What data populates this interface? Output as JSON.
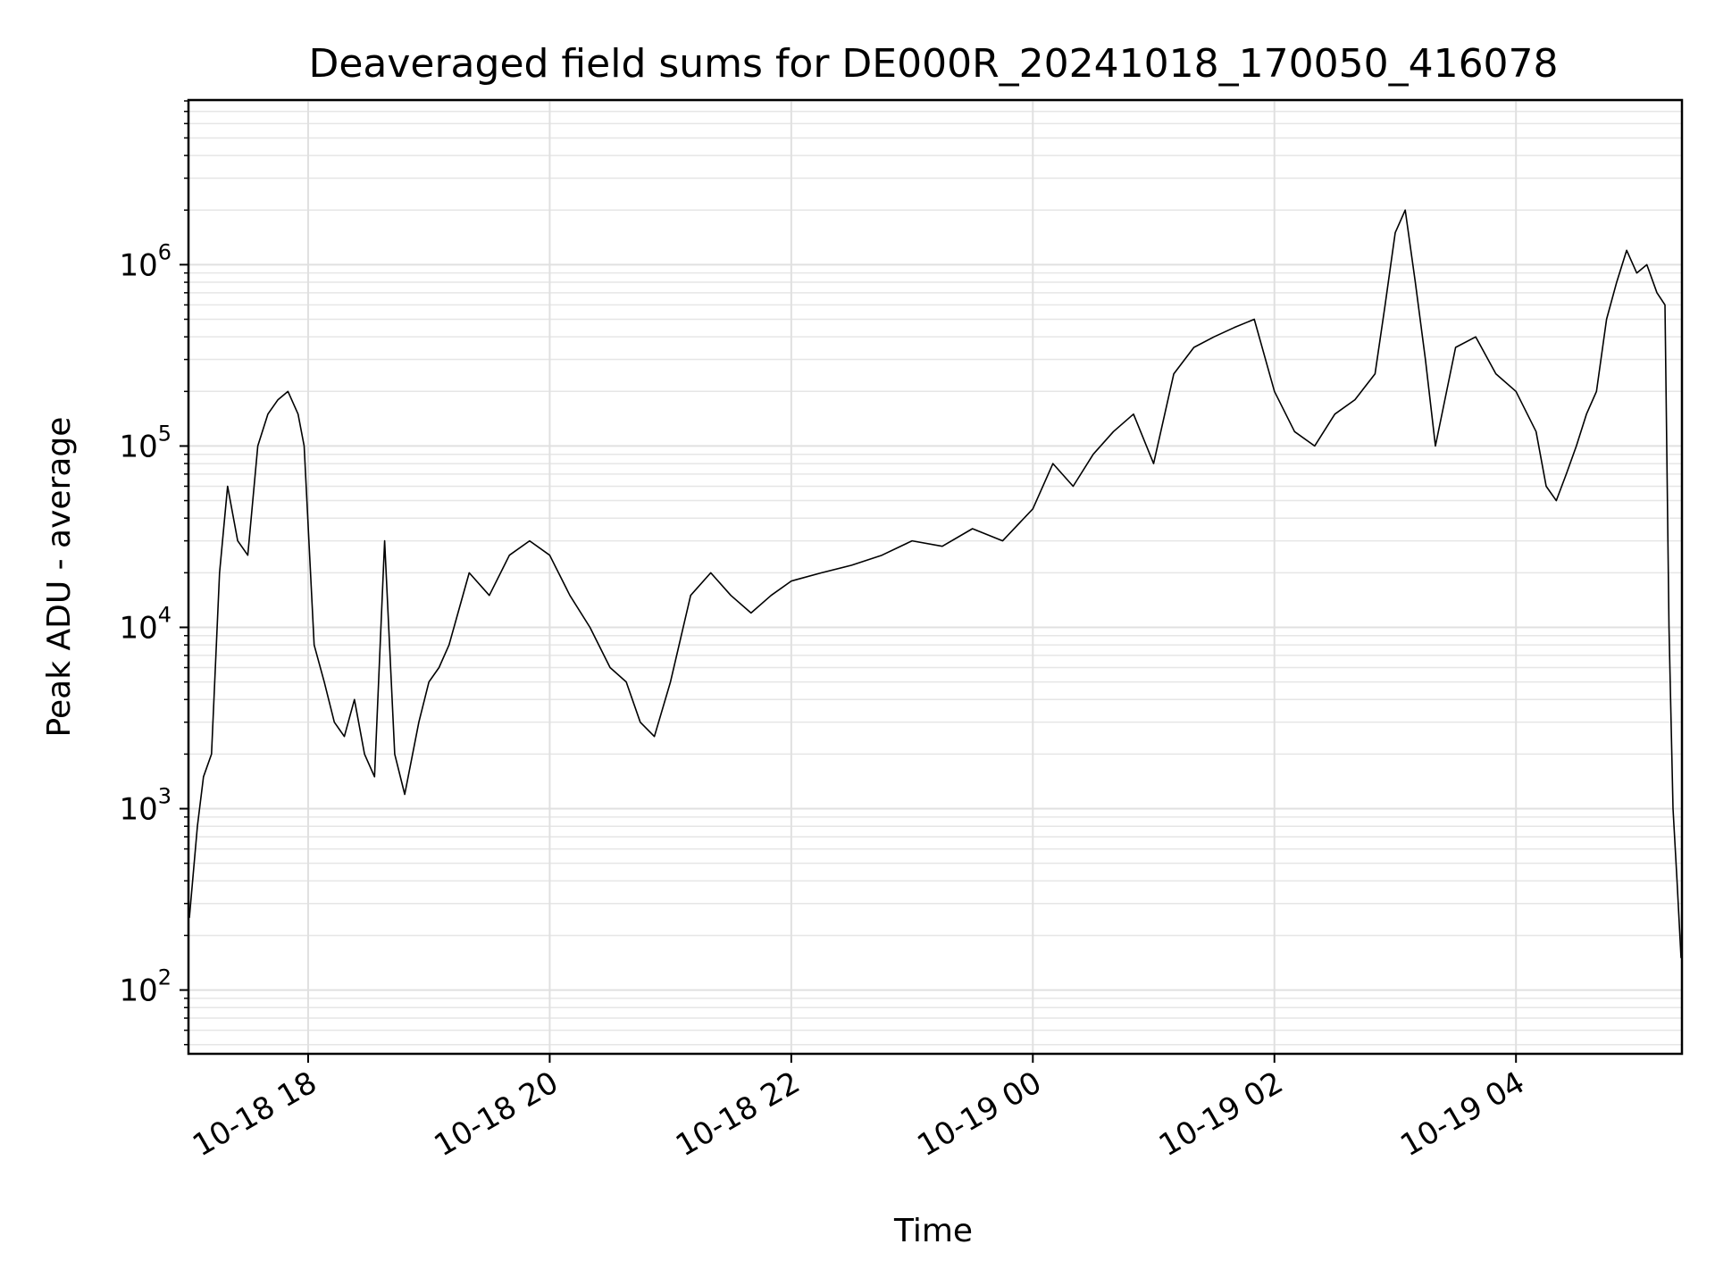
{
  "chart_data": {
    "type": "line",
    "title": "Deaveraged field sums for DE000R_20241018_170050_416078",
    "xlabel": "Time",
    "ylabel": "Peak ADU - average",
    "yscale": "log",
    "ylim": [
      45,
      8000000
    ],
    "xlim": [
      "2024-10-18T17:01",
      "2024-10-19T05:22"
    ],
    "grid": true,
    "line_color": "#000000",
    "x_ticks": [
      {
        "t": "2024-10-18T18:00",
        "label": "10-18 18"
      },
      {
        "t": "2024-10-18T20:00",
        "label": "10-18 20"
      },
      {
        "t": "2024-10-18T22:00",
        "label": "10-18 22"
      },
      {
        "t": "2024-10-19T00:00",
        "label": "10-19 00"
      },
      {
        "t": "2024-10-19T02:00",
        "label": "10-19 02"
      },
      {
        "t": "2024-10-19T04:00",
        "label": "10-19 04"
      }
    ],
    "y_ticks": [
      {
        "value": 100,
        "base": "10",
        "exp": "2"
      },
      {
        "value": 1000,
        "base": "10",
        "exp": "3"
      },
      {
        "value": 10000,
        "base": "10",
        "exp": "4"
      },
      {
        "value": 100000,
        "base": "10",
        "exp": "5"
      },
      {
        "value": 1000000,
        "base": "10",
        "exp": "6"
      }
    ],
    "series": [
      {
        "x": [
          "2024-10-18T17:01",
          "2024-10-18T17:05",
          "2024-10-18T17:08",
          "2024-10-18T17:12",
          "2024-10-18T17:16",
          "2024-10-18T17:20",
          "2024-10-18T17:25",
          "2024-10-18T17:30",
          "2024-10-18T17:35",
          "2024-10-18T17:40",
          "2024-10-18T17:45",
          "2024-10-18T17:50",
          "2024-10-18T17:55",
          "2024-10-18T17:58",
          "2024-10-18T18:03",
          "2024-10-18T18:08",
          "2024-10-18T18:13",
          "2024-10-18T18:18",
          "2024-10-18T18:23",
          "2024-10-18T18:28",
          "2024-10-18T18:33",
          "2024-10-18T18:38",
          "2024-10-18T18:43",
          "2024-10-18T18:48",
          "2024-10-18T18:55",
          "2024-10-18T19:00",
          "2024-10-18T19:05",
          "2024-10-18T19:10",
          "2024-10-18T19:20",
          "2024-10-18T19:30",
          "2024-10-18T19:40",
          "2024-10-18T19:50",
          "2024-10-18T20:00",
          "2024-10-18T20:10",
          "2024-10-18T20:20",
          "2024-10-18T20:30",
          "2024-10-18T20:38",
          "2024-10-18T20:45",
          "2024-10-18T20:52",
          "2024-10-18T21:00",
          "2024-10-18T21:10",
          "2024-10-18T21:20",
          "2024-10-18T21:30",
          "2024-10-18T21:40",
          "2024-10-18T21:50",
          "2024-10-18T22:00",
          "2024-10-18T22:15",
          "2024-10-18T22:30",
          "2024-10-18T22:45",
          "2024-10-18T23:00",
          "2024-10-18T23:15",
          "2024-10-18T23:30",
          "2024-10-18T23:45",
          "2024-10-19T00:00",
          "2024-10-19T00:10",
          "2024-10-19T00:20",
          "2024-10-19T00:30",
          "2024-10-19T00:40",
          "2024-10-19T00:50",
          "2024-10-19T01:00",
          "2024-10-19T01:10",
          "2024-10-19T01:20",
          "2024-10-19T01:30",
          "2024-10-19T01:40",
          "2024-10-19T01:50",
          "2024-10-19T02:00",
          "2024-10-19T02:10",
          "2024-10-19T02:20",
          "2024-10-19T02:30",
          "2024-10-19T02:40",
          "2024-10-19T02:50",
          "2024-10-19T02:55",
          "2024-10-19T03:00",
          "2024-10-19T03:05",
          "2024-10-19T03:10",
          "2024-10-19T03:15",
          "2024-10-19T03:20",
          "2024-10-19T03:30",
          "2024-10-19T03:40",
          "2024-10-19T03:50",
          "2024-10-19T04:00",
          "2024-10-19T04:10",
          "2024-10-19T04:15",
          "2024-10-19T04:20",
          "2024-10-19T04:25",
          "2024-10-19T04:30",
          "2024-10-19T04:35",
          "2024-10-19T04:40",
          "2024-10-19T04:45",
          "2024-10-19T04:50",
          "2024-10-19T04:55",
          "2024-10-19T05:00",
          "2024-10-19T05:05",
          "2024-10-19T05:10",
          "2024-10-19T05:14",
          "2024-10-19T05:16",
          "2024-10-19T05:18",
          "2024-10-19T05:20",
          "2024-10-19T05:22"
        ],
        "y": [
          250,
          800,
          1500,
          2000,
          20000,
          60000,
          30000,
          25000,
          100000,
          150000,
          180000,
          200000,
          150000,
          100000,
          8000,
          5000,
          3000,
          2500,
          4000,
          2000,
          1500,
          30000,
          2000,
          1200,
          3000,
          5000,
          6000,
          8000,
          20000,
          15000,
          25000,
          30000,
          25000,
          15000,
          10000,
          6000,
          5000,
          3000,
          2500,
          5000,
          15000,
          20000,
          15000,
          12000,
          15000,
          18000,
          20000,
          22000,
          25000,
          30000,
          28000,
          35000,
          30000,
          45000,
          80000,
          60000,
          90000,
          120000,
          150000,
          80000,
          250000,
          350000,
          400000,
          450000,
          500000,
          200000,
          120000,
          100000,
          150000,
          180000,
          250000,
          600000,
          1500000,
          2000000,
          800000,
          300000,
          100000,
          350000,
          400000,
          250000,
          200000,
          120000,
          60000,
          50000,
          70000,
          100000,
          150000,
          200000,
          500000,
          800000,
          1200000,
          900000,
          1000000,
          700000,
          600000,
          10000,
          1000,
          400,
          150
        ]
      }
    ]
  }
}
